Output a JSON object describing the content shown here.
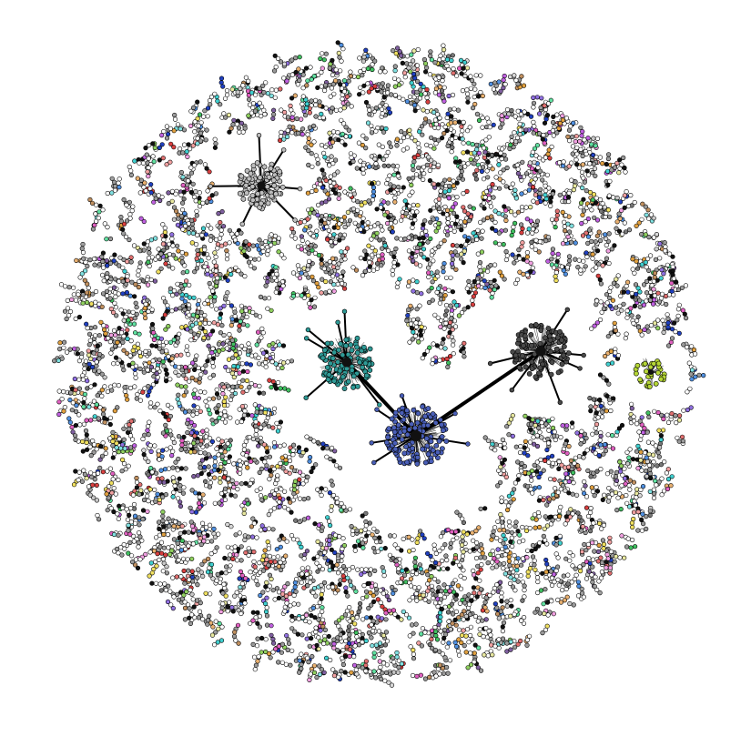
{
  "diagram": {
    "type": "network-graph",
    "background_color": "#ffffff",
    "edge_color": "#000000",
    "node_outline_color": "#000000",
    "layout_shape": "circle",
    "labels": "none",
    "small_component_palette": [
      "#c8c8c8",
      "#a0a0a0",
      "#787878",
      "#d9d9d9",
      "#ffffff",
      "#e07070",
      "#d84040",
      "#f0a0a0",
      "#e8b070",
      "#e0a040",
      "#f0e060",
      "#e8e8a0",
      "#90d060",
      "#40c060",
      "#60e0a0",
      "#40d0d0",
      "#80e0e0",
      "#5090e0",
      "#2040c0",
      "#9070e0",
      "#c060e0",
      "#e060c0",
      "#f0a0e0",
      "#c09060",
      "#8060a0"
    ],
    "hubs": [
      {
        "id": "hub-gray-light",
        "color": "#bdbdbd"
      },
      {
        "id": "hub-teal",
        "color": "#2e9a96"
      },
      {
        "id": "hub-blue",
        "color": "#4a5fb8"
      },
      {
        "id": "hub-dark-gray",
        "color": "#4a4a4a"
      },
      {
        "id": "hub-yellow-green",
        "color": "#b5d636"
      }
    ],
    "hub_links": [
      {
        "from": "hub-teal",
        "to": "hub-blue"
      },
      {
        "from": "hub-blue",
        "to": "hub-dark-gray"
      }
    ]
  }
}
